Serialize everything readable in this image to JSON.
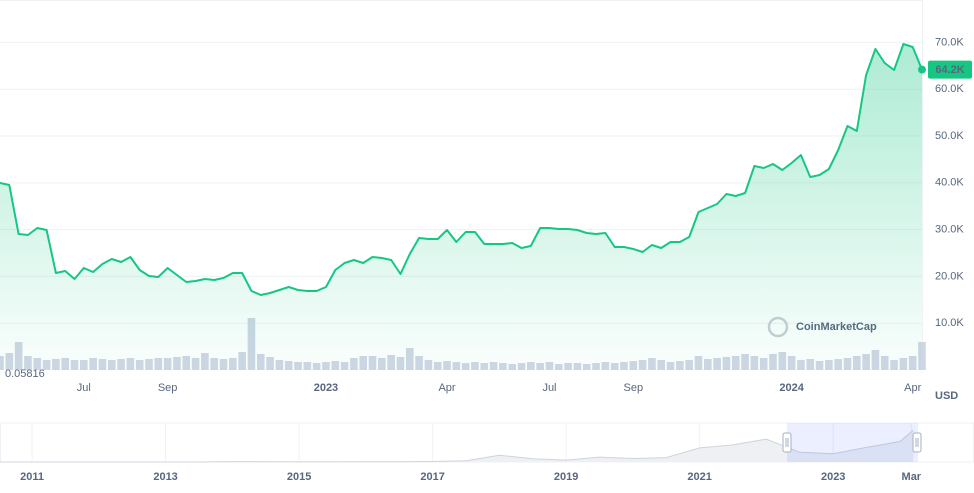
{
  "chart_data": {
    "type": "line",
    "color": "#16c784",
    "categories": [
      null,
      null,
      null,
      null,
      null,
      null,
      null,
      null,
      null,
      "Jul",
      null,
      null,
      null,
      null,
      null,
      null,
      null,
      null,
      "Sep",
      null,
      null,
      null,
      null,
      null,
      null,
      null,
      null,
      null,
      null,
      null,
      null,
      null,
      null,
      null,
      null,
      "2023",
      null,
      null,
      null,
      null,
      null,
      null,
      null,
      null,
      null,
      null,
      null,
      null,
      "Apr",
      null,
      null,
      null,
      null,
      null,
      null,
      null,
      null,
      null,
      null,
      "Jul",
      null,
      null,
      null,
      null,
      null,
      null,
      null,
      null,
      "Sep",
      null,
      null,
      null,
      null,
      null,
      null,
      null,
      null,
      null,
      null,
      null,
      null,
      null,
      null,
      null,
      null,
      "2024",
      null,
      null,
      null,
      null,
      null,
      null,
      null,
      null,
      null,
      null,
      null,
      null,
      "Apr",
      null
    ],
    "values": [
      39960,
      39530,
      29060,
      28850,
      30340,
      29910,
      20730,
      21150,
      19440,
      21790,
      20940,
      22650,
      23720,
      23080,
      24150,
      21370,
      20090,
      19870,
      21790,
      20300,
      18800,
      19020,
      19440,
      19230,
      19660,
      20730,
      20730,
      16880,
      16030,
      16450,
      17090,
      17740,
      17090,
      16880,
      16880,
      17740,
      21370,
      22860,
      23500,
      22860,
      24150,
      23930,
      23500,
      20510,
      24790,
      28210,
      27990,
      27990,
      29910,
      27350,
      29490,
      29490,
      26920,
      26920,
      26920,
      27140,
      26070,
      26500,
      30340,
      30340,
      30130,
      30130,
      29910,
      29270,
      29060,
      29270,
      26280,
      26280,
      25850,
      25210,
      26710,
      26070,
      27350,
      27350,
      28420,
      33760,
      34620,
      35470,
      37610,
      37180,
      37820,
      43590,
      43160,
      44020,
      42740,
      44230,
      45940,
      41240,
      41670,
      42950,
      47010,
      52140,
      51070,
      63030,
      68590,
      65600,
      64100,
      69660,
      69020,
      64200
    ],
    "last_label": "64.2K",
    "ylim": [
      0,
      78000
    ],
    "yticks": [
      {
        "value": 10000,
        "label": "10.0K"
      },
      {
        "value": 20000,
        "label": "20.0K"
      },
      {
        "value": 30000,
        "label": "30.0K"
      },
      {
        "value": 40000,
        "label": "40.0K"
      },
      {
        "value": 50000,
        "label": "50.0K"
      },
      {
        "value": 60000,
        "label": "60.0K"
      },
      {
        "value": 70000,
        "label": "70.0K"
      }
    ],
    "grid": true,
    "y_axis_label": "USD",
    "volume": {
      "color": "#cfd6e4",
      "vlim": [
        0,
        120
      ],
      "min_label": "0.05816",
      "values": [
        28,
        34,
        56,
        28,
        24,
        20,
        22,
        24,
        20,
        20,
        24,
        22,
        20,
        22,
        24,
        20,
        22,
        24,
        24,
        26,
        28,
        24,
        34,
        24,
        22,
        24,
        36,
        104,
        32,
        26,
        20,
        18,
        16,
        16,
        14,
        16,
        18,
        16,
        24,
        28,
        28,
        24,
        30,
        26,
        44,
        28,
        20,
        16,
        18,
        16,
        14,
        16,
        14,
        16,
        14,
        12,
        14,
        16,
        14,
        16,
        12,
        14,
        14,
        12,
        14,
        16,
        14,
        16,
        18,
        20,
        24,
        20,
        16,
        18,
        20,
        28,
        22,
        24,
        26,
        28,
        32,
        28,
        24,
        32,
        36,
        28,
        20,
        22,
        18,
        20,
        22,
        24,
        28,
        32,
        40,
        28,
        20,
        24,
        28,
        56
      ]
    },
    "watermark": "CoinMarketCap",
    "navigator": {
      "x": [
        2010.5,
        2011,
        2011.5,
        2012,
        2012.5,
        2013,
        2013.5,
        2014,
        2014.5,
        2015,
        2015.5,
        2016,
        2016.5,
        2017,
        2017.5,
        2018,
        2018.5,
        2019,
        2019.5,
        2020,
        2020.5,
        2021,
        2021.5,
        2022,
        2022.5,
        2023,
        2023.5,
        2024,
        2024.2
      ],
      "values": [
        0,
        0,
        15,
        5,
        7,
        13,
        100,
        900,
        600,
        300,
        250,
        400,
        650,
        1000,
        2500,
        14000,
        6500,
        3800,
        10000,
        7200,
        9000,
        29000,
        35000,
        47000,
        20000,
        17000,
        30000,
        42000,
        65000
      ],
      "ylim": [
        0,
        80000
      ],
      "xlim": [
        2010.52,
        2024.33
      ],
      "xticks": [
        2011,
        2013,
        2015,
        2017,
        2019,
        2021,
        2023,
        {
          "value": 2024.17,
          "label": "Mar"
        }
      ]
    }
  }
}
